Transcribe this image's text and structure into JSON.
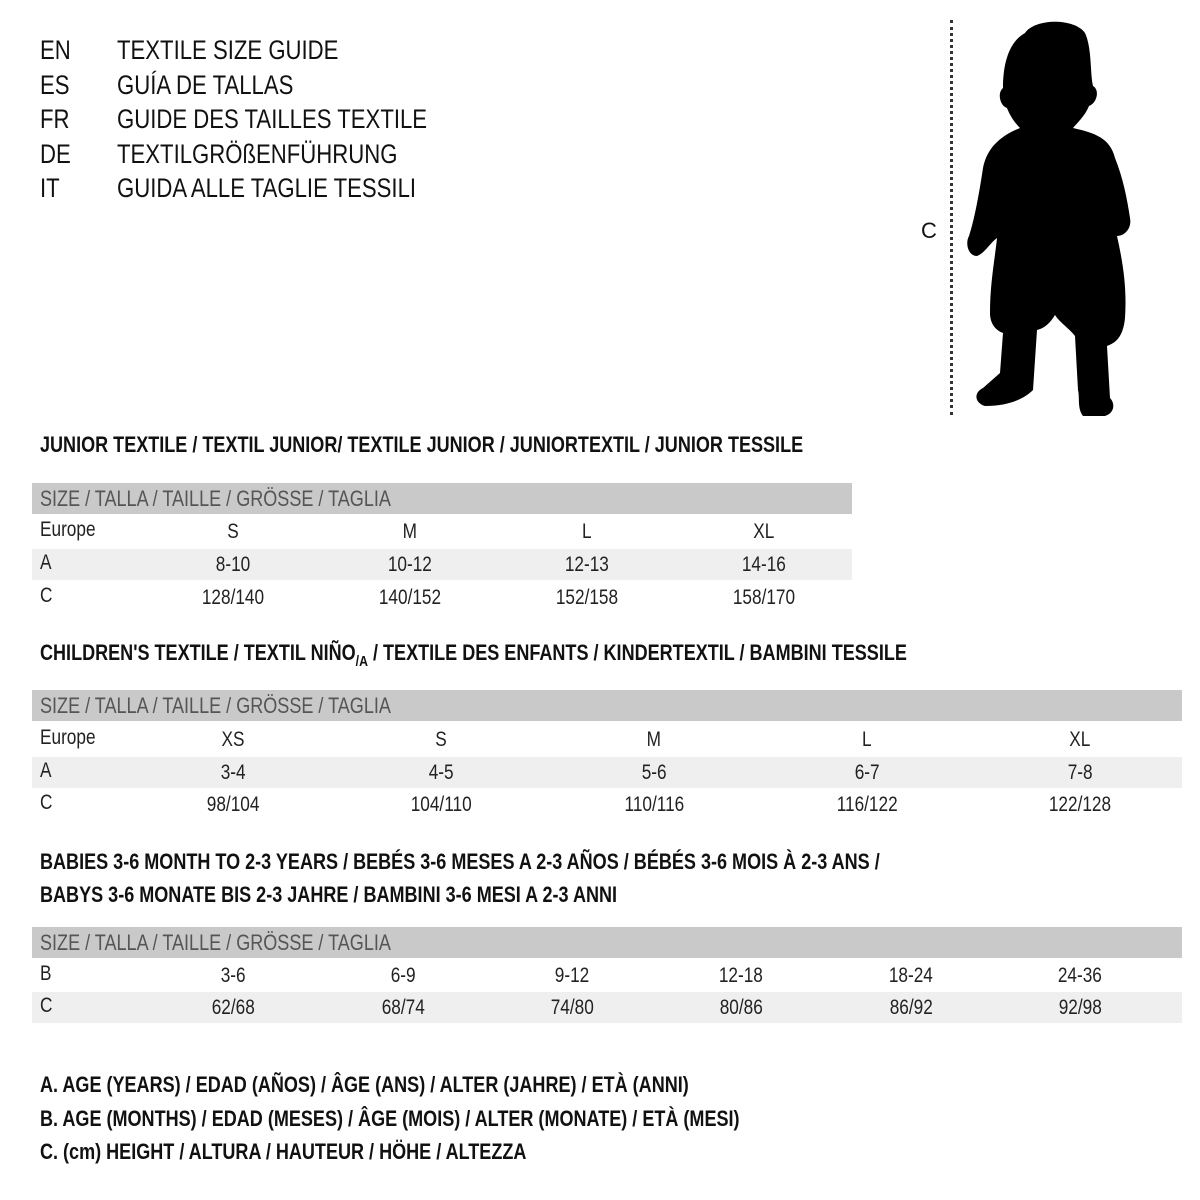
{
  "header": {
    "languages": [
      {
        "code": "EN",
        "title": "TEXTILE SIZE GUIDE"
      },
      {
        "code": "ES",
        "title": "GUÍA DE TALLAS"
      },
      {
        "code": "FR",
        "title": "GUIDE DES TAILLES TEXTILE"
      },
      {
        "code": "DE",
        "title": "TEXTILGRÖßENFÜHRUNG"
      },
      {
        "code": "IT",
        "title": "GUIDA ALLE TAGLIE TESSILI"
      }
    ]
  },
  "figure": {
    "measure_label": "C",
    "icon": "child-silhouette"
  },
  "colors": {
    "header_bar": "#c9c9c9",
    "stripe": "#efefef"
  },
  "tables": [
    {
      "title": "JUNIOR TEXTILE / TEXTIL JUNIOR/ TEXTILE JUNIOR / JUNIORTEXTIL / JUNIOR TESSILE",
      "header": "SIZE / TALLA / TAILLE / GRÖSSE / TAGLIA",
      "rows": [
        {
          "label": "Europe",
          "values": [
            "S",
            "M",
            "L",
            "XL"
          ]
        },
        {
          "label": "A",
          "values": [
            "8-10",
            "10-12",
            "12-13",
            "14-16"
          ]
        },
        {
          "label": "C",
          "values": [
            "128/140",
            "140/152",
            "152/158",
            "158/170"
          ]
        }
      ]
    },
    {
      "title_main": "CHILDREN'S TEXTILE / TEXTIL NIÑO",
      "title_sub": "/A",
      "title_rest": " / TEXTILE DES ENFANTS / KINDERTEXTIL / BAMBINI TESSILE",
      "header": "SIZE / TALLA / TAILLE / GRÖSSE / TAGLIA",
      "rows": [
        {
          "label": "Europe",
          "values": [
            "XS",
            "S",
            "M",
            "L",
            "XL"
          ]
        },
        {
          "label": "A",
          "values": [
            "3-4",
            "4-5",
            "5-6",
            "6-7",
            "7-8"
          ]
        },
        {
          "label": "C",
          "values": [
            "98/104",
            "104/110",
            "110/116",
            "116/122",
            "122/128"
          ]
        }
      ]
    },
    {
      "title_line1": "BABIES 3-6 MONTH TO 2-3 YEARS / BEBÉS 3-6 MESES A 2-3 AÑOS / BÉBÉS 3-6 MOIS À 2-3 ANS /",
      "title_line2": "BABYS 3-6 MONATE BIS 2-3 JAHRE / BAMBINI 3-6 MESI A 2-3 ANNI",
      "header": "SIZE / TALLA / TAILLE / GRÖSSE / TAGLIA",
      "rows": [
        {
          "label": "B",
          "values": [
            "3-6",
            "6-9",
            "9-12",
            "12-18",
            "18-24",
            "24-36"
          ]
        },
        {
          "label": "C",
          "values": [
            "62/68",
            "68/74",
            "74/80",
            "80/86",
            "86/92",
            "92/98"
          ]
        }
      ]
    }
  ],
  "legend": [
    "A. AGE (YEARS) / EDAD (AÑOS) / ÂGE (ANS) / ALTER (JAHRE) / ETÀ (ANNI)",
    "B. AGE (MONTHS) / EDAD (MESES) / ÂGE (MOIS) / ALTER (MONATE) / ETÀ (MESI)",
    "C. (cm) HEIGHT / ALTURA / HAUTEUR / HÖHE / ALTEZZA"
  ]
}
